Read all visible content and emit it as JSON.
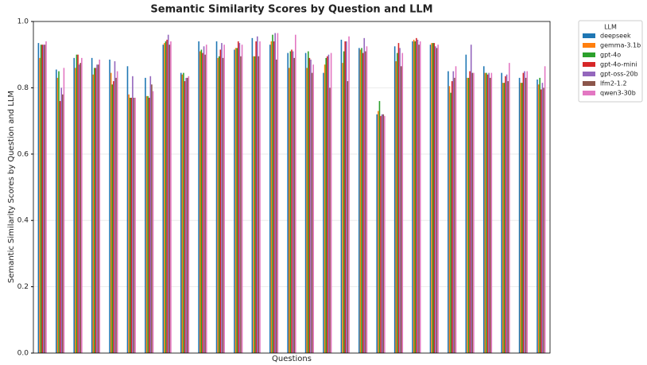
{
  "chart_data": {
    "type": "bar",
    "title": "Semantic Similarity Scores by Question and LLM",
    "x_label": "Questions",
    "y_label": "Semantic Similarity Scores by Question and LLM",
    "legend_title": "LLM",
    "grid": true,
    "categories": [
      null,
      null,
      null,
      null,
      null,
      null,
      null,
      null,
      null,
      null,
      null,
      null,
      null,
      null,
      null,
      null,
      null,
      null,
      null,
      null,
      null,
      null,
      null,
      null,
      null,
      null,
      null,
      null,
      null
    ],
    "ylim": [
      0,
      1.0
    ],
    "yticks": [
      {
        "value": 0,
        "label": "0.0"
      },
      0.2,
      0.4,
      0.6,
      0.8,
      {
        "value": 1.0,
        "label": "1.0"
      }
    ],
    "series": [
      {
        "name": "deepseek",
        "color": "#1f77b4",
        "values": [
          0.935,
          0.855,
          0.89,
          0.89,
          0.885,
          0.865,
          0.83,
          0.93,
          0.845,
          0.94,
          0.94,
          0.915,
          0.95,
          0.93,
          0.905,
          0.905,
          0.845,
          0.945,
          0.92,
          0.72,
          0.925,
          0.94,
          0.93,
          0.85,
          0.9,
          0.865,
          0.845,
          0.83,
          0.825
        ]
      },
      {
        "name": "gemma-3.1b",
        "color": "#ff7f0e",
        "values": [
          0.89,
          0.83,
          0.86,
          0.84,
          0.845,
          0.78,
          0.775,
          0.935,
          0.84,
          0.91,
          0.89,
          0.92,
          0.895,
          0.94,
          0.86,
          0.86,
          0.87,
          0.875,
          0.915,
          0.73,
          0.88,
          0.945,
          0.935,
          0.805,
          0.83,
          0.845,
          0.815,
          0.815,
          0.81
        ]
      },
      {
        "name": "gpt-4o",
        "color": "#2ca02c",
        "values": [
          0.93,
          0.85,
          0.9,
          0.86,
          0.81,
          0.77,
          0.775,
          0.94,
          0.845,
          0.915,
          0.895,
          0.92,
          0.895,
          0.96,
          0.91,
          0.91,
          0.89,
          0.91,
          0.92,
          0.76,
          0.905,
          0.94,
          0.935,
          0.785,
          0.83,
          0.845,
          0.815,
          0.815,
          0.83
        ]
      },
      {
        "name": "gpt-4o-mini",
        "color": "#d62728",
        "values": [
          0.93,
          0.76,
          0.9,
          0.86,
          0.82,
          0.77,
          0.77,
          0.945,
          0.82,
          0.905,
          0.915,
          0.94,
          0.94,
          0.94,
          0.915,
          0.89,
          0.895,
          0.94,
          0.905,
          0.715,
          0.935,
          0.95,
          0.935,
          0.82,
          0.85,
          0.84,
          0.835,
          0.845,
          0.795
        ]
      },
      {
        "name": "gpt-oss-20b",
        "color": "#9467bd",
        "values": [
          0.93,
          0.8,
          0.87,
          0.87,
          0.88,
          0.835,
          0.835,
          0.96,
          0.83,
          0.925,
          0.935,
          0.935,
          0.955,
          0.965,
          0.91,
          0.885,
          0.9,
          0.94,
          0.95,
          0.72,
          0.92,
          0.945,
          0.925,
          0.85,
          0.93,
          0.845,
          0.84,
          0.85,
          0.815
        ]
      },
      {
        "name": "lfm2-1.2",
        "color": "#8c564b",
        "values": [
          0.93,
          0.78,
          0.875,
          0.87,
          0.83,
          0.77,
          0.81,
          0.93,
          0.83,
          0.9,
          0.89,
          0.895,
          0.895,
          0.885,
          0.89,
          0.845,
          0.8,
          0.82,
          0.91,
          0.72,
          0.865,
          0.93,
          0.92,
          0.83,
          0.845,
          0.83,
          0.82,
          0.83,
          0.8
        ]
      },
      {
        "name": "qwen3-30b",
        "color": "#e377c2",
        "values": [
          0.94,
          0.86,
          0.89,
          0.885,
          0.85,
          0.77,
          0.79,
          0.94,
          0.835,
          0.93,
          0.93,
          0.93,
          0.94,
          0.965,
          0.96,
          0.87,
          0.905,
          0.955,
          0.925,
          0.715,
          0.905,
          0.94,
          0.93,
          0.865,
          0.845,
          0.845,
          0.875,
          0.85,
          0.865
        ]
      }
    ]
  }
}
